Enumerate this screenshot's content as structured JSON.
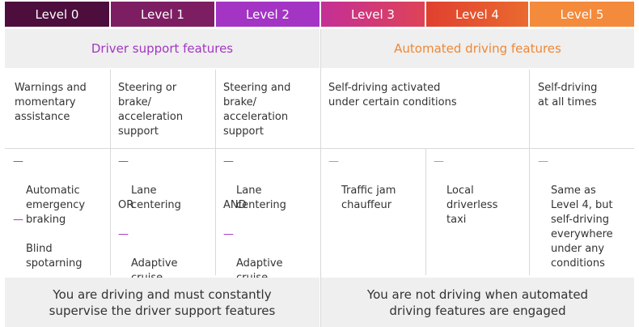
{
  "levels": [
    {
      "label": "Level 0",
      "color": "#4d0e3d"
    },
    {
      "label": "Level 1",
      "color": "#7d1e63"
    },
    {
      "label": "Level 2",
      "color": "#a334c4"
    },
    {
      "label": "Level 3",
      "color": "#cc3a7e"
    },
    {
      "label": "Level 4",
      "color": "#e24a2b"
    },
    {
      "label": "Level 5",
      "color": "#f48a3b"
    }
  ],
  "bands": {
    "driver_support": {
      "title": "Driver support features",
      "color": "#a235c3"
    },
    "automated": {
      "title": "Automated driving features",
      "color": "#ef8734"
    }
  },
  "descriptions": {
    "level0": "Warnings and\nmomentary\nassistance",
    "level1": "Steering or\nbrake/\nacceleration\nsupport",
    "level2": "Steering and\nbrake/\nacceleration\nsupport",
    "level3_4": "Self-driving activated\nunder certain conditions",
    "level5": "Self-driving\nat all times"
  },
  "features": {
    "level0": [
      "Automatic\nemergency\nbraking",
      "Blind\nspotarning"
    ],
    "level1": {
      "a": "Lane\ncentering",
      "connector": "OR",
      "b": "Adaptive\ncruise\ncontrol"
    },
    "level2": {
      "a": "Lane\ncentering",
      "connector": "AND",
      "b": "Adaptive\ncruise\ncontrol"
    },
    "level3": "Traffic jam\nchauffeur",
    "level4": "Local\ndriverless\ntaxi",
    "level5": "Same as\nLevel 4, but\nself-driving\neverywhere\nunder any\nconditions"
  },
  "dash_glyph": "—",
  "footer": {
    "left": [
      "You are driving and must constantly",
      "supervise the driver support features"
    ],
    "right": [
      "You are not driving when automated",
      "driving features are engaged"
    ]
  }
}
